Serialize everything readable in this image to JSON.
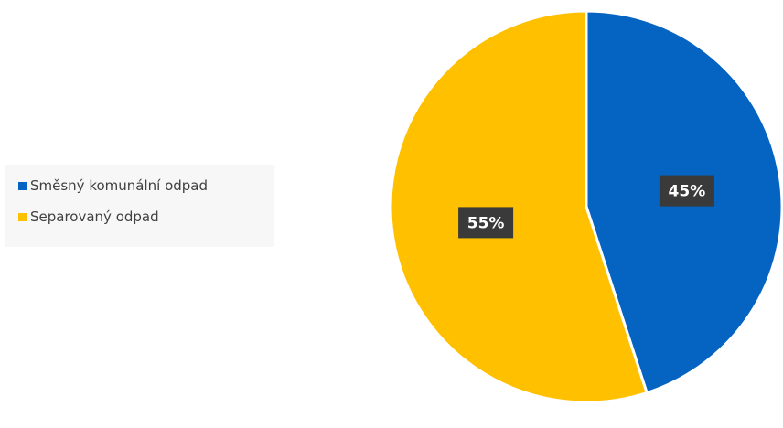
{
  "chart_data": {
    "type": "pie",
    "categories": [
      "Směsný komunální odpad",
      "Separovaný odpad"
    ],
    "values": [
      45,
      55
    ],
    "data_labels": [
      "45%",
      "55%"
    ],
    "colors": [
      "#0563C1",
      "#FFC000"
    ],
    "legend_position": "left"
  },
  "legend": {
    "items": [
      {
        "label": "Směsný komunální odpad",
        "color": "#0563C1"
      },
      {
        "label": "Separovaný odpad",
        "color": "#FFC000"
      }
    ]
  }
}
